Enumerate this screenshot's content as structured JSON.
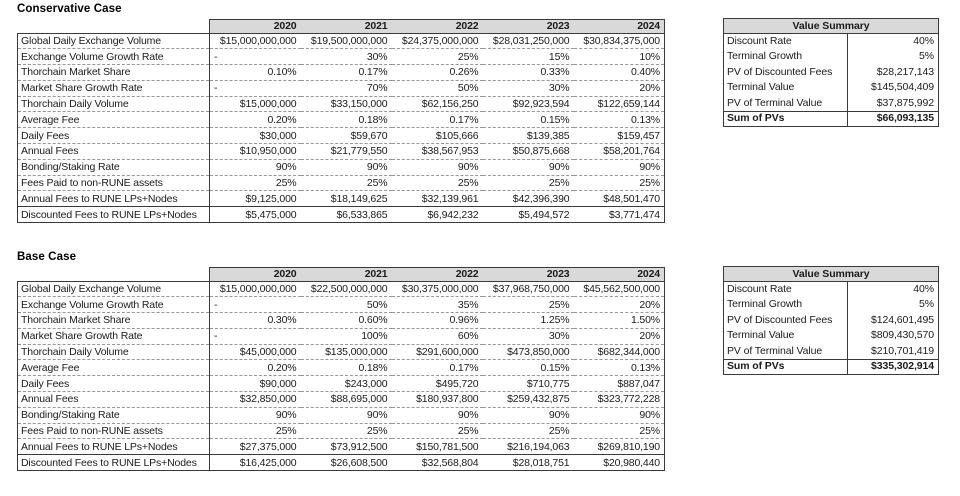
{
  "conservative": {
    "title": "Conservative Case",
    "years": [
      "2020",
      "2021",
      "2022",
      "2023",
      "2024"
    ],
    "rows": [
      {
        "label": "Global Daily Exchange Volume",
        "values": [
          "$15,000,000,000",
          "$19,500,000,000",
          "$24,375,000,000",
          "$28,031,250,000",
          "$30,834,375,000"
        ]
      },
      {
        "label": "Exchange Volume Growth Rate",
        "values": [
          "-",
          "30%",
          "25%",
          "15%",
          "10%"
        ]
      },
      {
        "label": "Thorchain Market Share",
        "values": [
          "0.10%",
          "0.17%",
          "0.26%",
          "0.33%",
          "0.40%"
        ]
      },
      {
        "label": "Market Share Growth Rate",
        "values": [
          "-",
          "70%",
          "50%",
          "30%",
          "20%"
        ]
      },
      {
        "label": "Thorchain Daily Volume",
        "values": [
          "$15,000,000",
          "$33,150,000",
          "$62,156,250",
          "$92,923,594",
          "$122,659,144"
        ]
      },
      {
        "label": "Average Fee",
        "values": [
          "0.20%",
          "0.18%",
          "0.17%",
          "0.15%",
          "0.13%"
        ]
      },
      {
        "label": "Daily Fees",
        "values": [
          "$30,000",
          "$59,670",
          "$105,666",
          "$139,385",
          "$159,457"
        ]
      },
      {
        "label": "Annual Fees",
        "values": [
          "$10,950,000",
          "$21,779,550",
          "$38,567,953",
          "$50,875,668",
          "$58,201,764"
        ]
      },
      {
        "label": "Bonding/Staking Rate",
        "values": [
          "90%",
          "90%",
          "90%",
          "90%",
          "90%"
        ]
      },
      {
        "label": "Fees Paid to non-RUNE assets",
        "values": [
          "25%",
          "25%",
          "25%",
          "25%",
          "25%"
        ]
      },
      {
        "label": "Annual Fees to RUNE LPs+Nodes",
        "values": [
          "$9,125,000",
          "$18,149,625",
          "$32,139,961",
          "$42,396,390",
          "$48,501,470"
        ]
      },
      {
        "label": "Discounted Fees to RUNE LPs+Nodes",
        "values": [
          "$5,475,000",
          "$6,533,865",
          "$6,942,232",
          "$5,494,572",
          "$3,771,474"
        ]
      }
    ],
    "summary": {
      "title": "Value Summary",
      "rows": [
        {
          "label": "Discount Rate",
          "value": "40%"
        },
        {
          "label": "Terminal Growth",
          "value": "5%"
        },
        {
          "label": "PV of Discounted Fees",
          "value": "$28,217,143"
        },
        {
          "label": "Terminal Value",
          "value": "$145,504,409"
        },
        {
          "label": "PV of Terminal Value",
          "value": "$37,875,992"
        },
        {
          "label": "Sum of PVs",
          "value": "$66,093,135"
        }
      ]
    }
  },
  "base": {
    "title": "Base Case",
    "years": [
      "2020",
      "2021",
      "2022",
      "2023",
      "2024"
    ],
    "rows": [
      {
        "label": "Global Daily Exchange Volume",
        "values": [
          "$15,000,000,000",
          "$22,500,000,000",
          "$30,375,000,000",
          "$37,968,750,000",
          "$45,562,500,000"
        ]
      },
      {
        "label": "Exchange Volume Growth Rate",
        "values": [
          "-",
          "50%",
          "35%",
          "25%",
          "20%"
        ]
      },
      {
        "label": "Thorchain Market Share",
        "values": [
          "0.30%",
          "0.60%",
          "0.96%",
          "1.25%",
          "1.50%"
        ]
      },
      {
        "label": "Market Share Growth Rate",
        "values": [
          "-",
          "100%",
          "60%",
          "30%",
          "20%"
        ]
      },
      {
        "label": "Thorchain Daily Volume",
        "values": [
          "$45,000,000",
          "$135,000,000",
          "$291,600,000",
          "$473,850,000",
          "$682,344,000"
        ]
      },
      {
        "label": "Average Fee",
        "values": [
          "0.20%",
          "0.18%",
          "0.17%",
          "0.15%",
          "0.13%"
        ]
      },
      {
        "label": "Daily Fees",
        "values": [
          "$90,000",
          "$243,000",
          "$495,720",
          "$710,775",
          "$887,047"
        ]
      },
      {
        "label": "Annual Fees",
        "values": [
          "$32,850,000",
          "$88,695,000",
          "$180,937,800",
          "$259,432,875",
          "$323,772,228"
        ]
      },
      {
        "label": "Bonding/Staking Rate",
        "values": [
          "90%",
          "90%",
          "90%",
          "90%",
          "90%"
        ]
      },
      {
        "label": "Fees Paid to non-RUNE assets",
        "values": [
          "25%",
          "25%",
          "25%",
          "25%",
          "25%"
        ]
      },
      {
        "label": "Annual Fees to RUNE LPs+Nodes",
        "values": [
          "$27,375,000",
          "$73,912,500",
          "$150,781,500",
          "$216,194,063",
          "$269,810,190"
        ]
      },
      {
        "label": "Discounted Fees to RUNE LPs+Nodes",
        "values": [
          "$16,425,000",
          "$26,608,500",
          "$32,568,804",
          "$28,018,751",
          "$20,980,440"
        ]
      }
    ],
    "summary": {
      "title": "Value Summary",
      "rows": [
        {
          "label": "Discount Rate",
          "value": "40%"
        },
        {
          "label": "Terminal Growth",
          "value": "5%"
        },
        {
          "label": "PV of Discounted Fees",
          "value": "$124,601,495"
        },
        {
          "label": "Terminal Value",
          "value": "$809,430,570"
        },
        {
          "label": "PV of Terminal Value",
          "value": "$210,701,419"
        },
        {
          "label": "Sum of PVs",
          "value": "$335,302,914"
        }
      ]
    }
  }
}
